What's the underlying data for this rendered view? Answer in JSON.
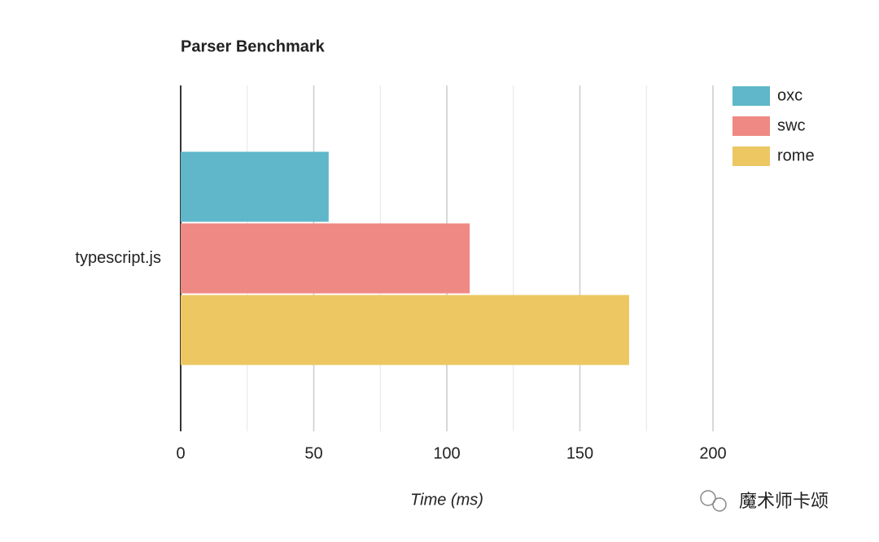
{
  "chart_data": {
    "type": "hbar",
    "title": "Parser Benchmark",
    "categories": [
      "typescript.js"
    ],
    "series": [
      {
        "name": "oxc",
        "color": "#5fb7c9",
        "values": [
          55.6
        ]
      },
      {
        "name": "swc",
        "color": "#ef8983",
        "values": [
          108.6
        ]
      },
      {
        "name": "rome",
        "color": "#ecc762",
        "values": [
          168.5
        ]
      }
    ],
    "xlabel": "Time (ms)",
    "xlim": [
      0,
      200
    ],
    "xticks": [
      0,
      50,
      100,
      150,
      200
    ],
    "minor_xticks": [
      25,
      75,
      125,
      175
    ],
    "grid": true,
    "legend": "right",
    "watermark": "魔术师卡颂"
  }
}
